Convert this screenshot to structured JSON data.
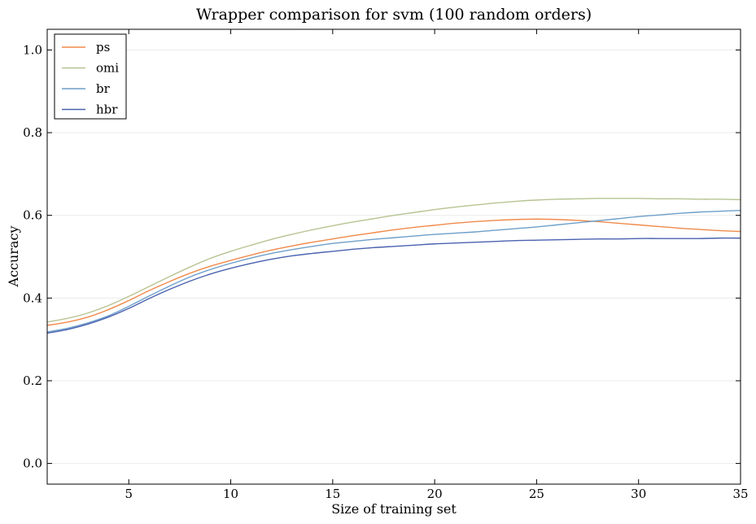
{
  "chart_data": {
    "type": "line",
    "title": "Wrapper comparison for svm (100 random orders)",
    "xlabel": "Size of training set",
    "ylabel": "Accuracy",
    "xlim": [
      1,
      35
    ],
    "ylim": [
      -0.05,
      1.05
    ],
    "xticks": [
      5,
      10,
      15,
      20,
      25,
      30,
      35
    ],
    "xtick_labels": [
      "5",
      "10",
      "15",
      "20",
      "25",
      "30",
      "35"
    ],
    "yticks": [
      0.0,
      0.2,
      0.4,
      0.6,
      0.8,
      1.0
    ],
    "ytick_labels": [
      "0.0",
      "0.2",
      "0.4",
      "0.6",
      "0.8",
      "1.0"
    ],
    "grid": "horizontal",
    "legend_position": "top-left",
    "x": [
      1,
      2,
      3,
      4,
      5,
      6,
      7,
      8,
      9,
      10,
      11,
      12,
      13,
      14,
      15,
      16,
      17,
      18,
      19,
      20,
      21,
      22,
      23,
      24,
      25,
      26,
      27,
      28,
      29,
      30,
      31,
      32,
      33,
      34,
      35
    ],
    "series": [
      {
        "name": "ps",
        "color": "#f08a4b",
        "values": [
          0.334,
          0.342,
          0.354,
          0.372,
          0.394,
          0.418,
          0.44,
          0.46,
          0.477,
          0.491,
          0.504,
          0.516,
          0.526,
          0.535,
          0.543,
          0.551,
          0.558,
          0.565,
          0.571,
          0.576,
          0.581,
          0.585,
          0.588,
          0.59,
          0.591,
          0.59,
          0.588,
          0.585,
          0.581,
          0.577,
          0.573,
          0.569,
          0.566,
          0.563,
          0.561
        ]
      },
      {
        "name": "omi",
        "color": "#b7c492",
        "values": [
          0.342,
          0.351,
          0.364,
          0.382,
          0.404,
          0.428,
          0.452,
          0.475,
          0.496,
          0.513,
          0.528,
          0.542,
          0.554,
          0.565,
          0.575,
          0.584,
          0.592,
          0.6,
          0.607,
          0.614,
          0.62,
          0.625,
          0.63,
          0.634,
          0.637,
          0.639,
          0.64,
          0.641,
          0.641,
          0.641,
          0.64,
          0.64,
          0.639,
          0.639,
          0.638
        ]
      },
      {
        "name": "br",
        "color": "#6e9fc9",
        "values": [
          0.318,
          0.327,
          0.34,
          0.357,
          0.38,
          0.405,
          0.429,
          0.451,
          0.469,
          0.484,
          0.497,
          0.508,
          0.517,
          0.525,
          0.532,
          0.537,
          0.542,
          0.546,
          0.55,
          0.554,
          0.557,
          0.56,
          0.564,
          0.568,
          0.572,
          0.577,
          0.582,
          0.587,
          0.592,
          0.597,
          0.601,
          0.605,
          0.608,
          0.61,
          0.612
        ]
      },
      {
        "name": "hbr",
        "color": "#4a62b0",
        "values": [
          0.315,
          0.324,
          0.337,
          0.354,
          0.375,
          0.399,
          0.421,
          0.441,
          0.458,
          0.472,
          0.484,
          0.494,
          0.502,
          0.508,
          0.513,
          0.518,
          0.522,
          0.525,
          0.528,
          0.531,
          0.533,
          0.535,
          0.537,
          0.539,
          0.54,
          0.541,
          0.542,
          0.543,
          0.543,
          0.544,
          0.544,
          0.544,
          0.544,
          0.545,
          0.545
        ]
      }
    ]
  }
}
